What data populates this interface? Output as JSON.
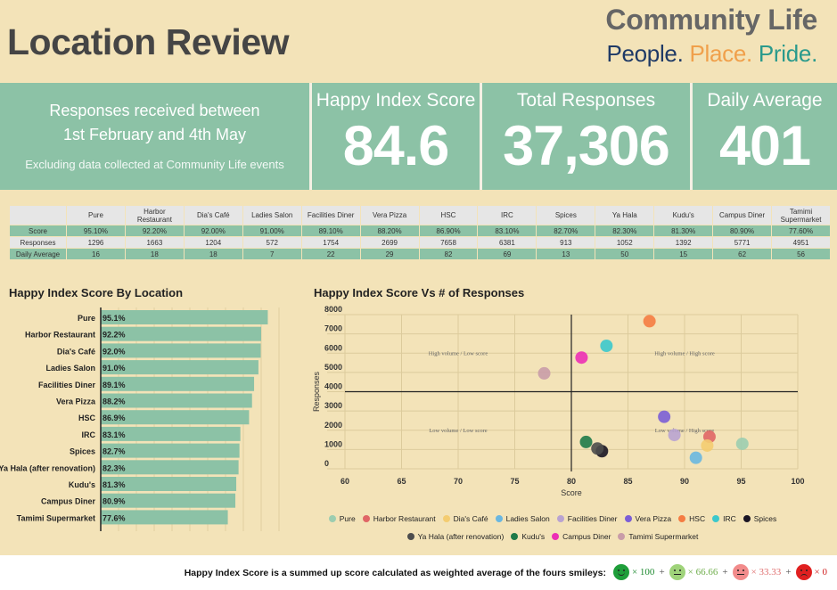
{
  "header": {
    "title": "Location Review",
    "brand_name": "Community Life",
    "brand_tagline": [
      {
        "text": "People.",
        "color": "#1f3a66"
      },
      {
        "text": "Place.",
        "color": "#f0a04b"
      },
      {
        "text": "Pride.",
        "color": "#2a9a8c"
      }
    ]
  },
  "kpis": {
    "info_line1": "Responses received between",
    "info_line2": "1st February and 4th May",
    "info_note": "Excluding data collected at Community Life events",
    "happy_index_label": "Happy Index Score",
    "happy_index_value": "84.6",
    "total_responses_label": "Total Responses",
    "total_responses_value": "37,306",
    "daily_average_label": "Daily Average",
    "daily_average_value": "401"
  },
  "summary_table": {
    "columns": [
      "Pure",
      "Harbor Restaurant",
      "Dia's Café",
      "Ladies Salon",
      "Facilities Diner",
      "Vera Pizza",
      "HSC",
      "IRC",
      "Spices",
      "Ya Hala",
      "Kudu's",
      "Campus Diner",
      "Tamimi Supermarket"
    ],
    "rows": [
      {
        "label": "Score",
        "style": "green",
        "values": [
          "95.10%",
          "92.20%",
          "92.00%",
          "91.00%",
          "89.10%",
          "88.20%",
          "86.90%",
          "83.10%",
          "82.70%",
          "82.30%",
          "81.30%",
          "80.90%",
          "77.60%"
        ]
      },
      {
        "label": "Responses",
        "style": "grey",
        "values": [
          "1296",
          "1663",
          "1204",
          "572",
          "1754",
          "2699",
          "7658",
          "6381",
          "913",
          "1052",
          "1392",
          "5771",
          "4951"
        ]
      },
      {
        "label": "Daily  Average",
        "style": "green",
        "values": [
          "16",
          "18",
          "18",
          "7",
          "22",
          "29",
          "82",
          "69",
          "13",
          "50",
          "15",
          "62",
          "56"
        ]
      }
    ]
  },
  "chart_data": [
    {
      "type": "bar",
      "orientation": "horizontal",
      "title": "Happy Index Score By Location",
      "categories": [
        "Pure",
        "Harbor Restaurant",
        "Dia's Café",
        "Ladies Salon",
        "Facilities Diner",
        "Vera Pizza",
        "HSC",
        "IRC",
        "Spices",
        "Ya Hala (after renovation)",
        "Kudu's",
        "Campus Diner",
        "Tamimi Supermarket"
      ],
      "values": [
        95.1,
        92.2,
        92.0,
        91.0,
        89.1,
        88.2,
        86.9,
        83.1,
        82.7,
        82.3,
        81.3,
        80.9,
        77.6
      ],
      "data_labels": [
        "95.1%",
        "92.2%",
        "92.0%",
        "91.0%",
        "89.1%",
        "88.2%",
        "86.9%",
        "83.1%",
        "82.7%",
        "82.3%",
        "81.3%",
        "80.9%",
        "77.6%"
      ],
      "xlim": [
        22,
        100
      ],
      "bar_color": "#8cc2a6",
      "grid": true
    },
    {
      "type": "scatter",
      "title": "Happy Index Score Vs # of Responses",
      "xlabel": "Score",
      "ylabel": "Responses",
      "xlim": [
        60,
        100
      ],
      "ylim": [
        0,
        8000
      ],
      "xticks": [
        60,
        65,
        70,
        75,
        80,
        85,
        90,
        95,
        100
      ],
      "yticks": [
        0,
        1000,
        2000,
        3000,
        4000,
        5000,
        6000,
        7000,
        8000
      ],
      "grid": true,
      "reference_lines": {
        "x": 80,
        "y": 4000
      },
      "quadrant_labels": [
        {
          "text": "High volume / Low score",
          "x": 70,
          "y": 5900
        },
        {
          "text": "High volume / High score",
          "x": 90,
          "y": 5900
        },
        {
          "text": "Low volume / Low score",
          "x": 70,
          "y": 1900
        },
        {
          "text": "Low volume / High score",
          "x": 90,
          "y": 1900
        }
      ],
      "series": [
        {
          "name": "Pure",
          "x": 95.1,
          "y": 1296,
          "color": "#9ccdb0"
        },
        {
          "name": "Harbor Restaurant",
          "x": 92.2,
          "y": 1663,
          "color": "#e06666"
        },
        {
          "name": "Dia's Café",
          "x": 92.0,
          "y": 1204,
          "color": "#f4cc70"
        },
        {
          "name": "Ladies Salon",
          "x": 91.0,
          "y": 572,
          "color": "#6ab7e0"
        },
        {
          "name": "Facilities Diner",
          "x": 89.1,
          "y": 1754,
          "color": "#b9a3d1"
        },
        {
          "name": "Vera Pizza",
          "x": 88.2,
          "y": 2699,
          "color": "#7b5ed6"
        },
        {
          "name": "HSC",
          "x": 86.9,
          "y": 7658,
          "color": "#f57c42"
        },
        {
          "name": "IRC",
          "x": 83.1,
          "y": 6381,
          "color": "#3cc8cc"
        },
        {
          "name": "Spices",
          "x": 82.7,
          "y": 913,
          "color": "#1a1524"
        },
        {
          "name": "Ya Hala (after renovation)",
          "x": 82.3,
          "y": 1052,
          "color": "#4d4d4d"
        },
        {
          "name": "Kudu's",
          "x": 81.3,
          "y": 1392,
          "color": "#1f7a4a"
        },
        {
          "name": "Campus Diner",
          "x": 80.9,
          "y": 5771,
          "color": "#ec2fb5"
        },
        {
          "name": "Tamimi Supermarket",
          "x": 77.6,
          "y": 4951,
          "color": "#c99ca8"
        }
      ],
      "legend_position": "bottom"
    }
  ],
  "footer": {
    "text": "Happy Index Score is a summed up score calculated as weighted average of the fours smileys:",
    "smileys": [
      {
        "icon": "very-happy-smiley",
        "color": "#1e9e3a",
        "weight": "× 100",
        "text_color": "#1e8a30"
      },
      {
        "icon": "happy-smiley",
        "color": "#9fd37a",
        "weight": "× 66.66",
        "text_color": "#6fae4c"
      },
      {
        "icon": "unhappy-smiley",
        "color": "#f28b8b",
        "weight": "× 33.33",
        "text_color": "#e07070"
      },
      {
        "icon": "very-unhappy-smiley",
        "color": "#e02020",
        "weight": "× 0",
        "text_color": "#d02020"
      }
    ],
    "plus_sign": "+"
  }
}
